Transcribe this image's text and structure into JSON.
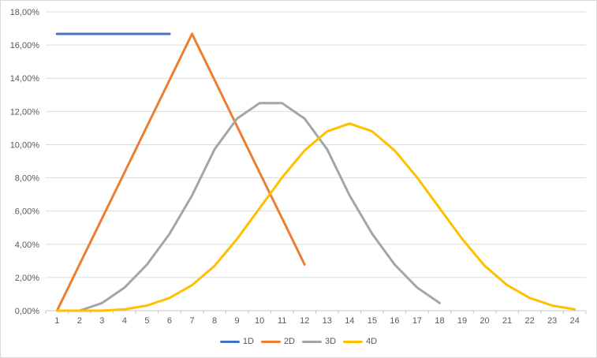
{
  "chart": {
    "background": "#FFFFFF",
    "border_color": "#D9D9D9",
    "grid_color": "#DCDCDC",
    "axis_color": "#C9C9C9",
    "label_color": "#595959",
    "y_axis": {
      "tick_labels": [
        "0,00%",
        "2,00%",
        "4,00%",
        "6,00%",
        "8,00%",
        "10,00%",
        "12,00%",
        "14,00%",
        "16,00%",
        "18,00%"
      ]
    },
    "x_axis": {
      "tick_labels": [
        "1",
        "2",
        "3",
        "4",
        "5",
        "6",
        "7",
        "8",
        "9",
        "10",
        "11",
        "12",
        "13",
        "14",
        "15",
        "16",
        "17",
        "18",
        "19",
        "20",
        "21",
        "22",
        "23",
        "24"
      ]
    },
    "legend": [
      {
        "label": "1D",
        "color": "#4472C4"
      },
      {
        "label": "2D",
        "color": "#ED7D31"
      },
      {
        "label": "3D",
        "color": "#A5A5A5"
      },
      {
        "label": "4D",
        "color": "#FFC000"
      }
    ]
  },
  "chart_data": {
    "type": "line",
    "title": "",
    "xlabel": "",
    "ylabel": "",
    "x_categories": [
      1,
      2,
      3,
      4,
      5,
      6,
      7,
      8,
      9,
      10,
      11,
      12,
      13,
      14,
      15,
      16,
      17,
      18,
      19,
      20,
      21,
      22,
      23,
      24
    ],
    "ylim": [
      0,
      18
    ],
    "y_step": 2,
    "y_unit": "percent",
    "y_format": "decimal-comma",
    "grid": "horizontal",
    "legend_position": "bottom",
    "series": [
      {
        "name": "1D",
        "color": "#4472C4",
        "points": [
          [
            1,
            16.67
          ],
          [
            2,
            16.67
          ],
          [
            3,
            16.67
          ],
          [
            4,
            16.67
          ],
          [
            5,
            16.67
          ],
          [
            6,
            16.67
          ]
        ]
      },
      {
        "name": "2D",
        "color": "#ED7D31",
        "points": [
          [
            1,
            0
          ],
          [
            2,
            2.78
          ],
          [
            3,
            5.56
          ],
          [
            4,
            8.33
          ],
          [
            5,
            11.11
          ],
          [
            6,
            13.89
          ],
          [
            7,
            16.67
          ],
          [
            8,
            13.89
          ],
          [
            9,
            11.11
          ],
          [
            10,
            8.33
          ],
          [
            11,
            5.56
          ],
          [
            12,
            2.78
          ]
        ]
      },
      {
        "name": "3D",
        "color": "#A5A5A5",
        "points": [
          [
            2,
            0
          ],
          [
            3,
            0.46
          ],
          [
            4,
            1.39
          ],
          [
            5,
            2.78
          ],
          [
            6,
            4.63
          ],
          [
            7,
            6.94
          ],
          [
            8,
            9.72
          ],
          [
            9,
            11.57
          ],
          [
            10,
            12.5
          ],
          [
            11,
            12.5
          ],
          [
            12,
            11.57
          ],
          [
            13,
            9.72
          ],
          [
            14,
            6.94
          ],
          [
            15,
            4.63
          ],
          [
            16,
            2.78
          ],
          [
            17,
            1.39
          ],
          [
            18,
            0.46
          ]
        ]
      },
      {
        "name": "4D",
        "color": "#FFC000",
        "points": [
          [
            1,
            0
          ],
          [
            2,
            0
          ],
          [
            3,
            0
          ],
          [
            4,
            0.08
          ],
          [
            5,
            0.31
          ],
          [
            6,
            0.77
          ],
          [
            7,
            1.54
          ],
          [
            8,
            2.7
          ],
          [
            9,
            4.32
          ],
          [
            10,
            6.17
          ],
          [
            11,
            8.02
          ],
          [
            12,
            9.65
          ],
          [
            13,
            10.8
          ],
          [
            14,
            11.27
          ],
          [
            15,
            10.8
          ],
          [
            16,
            9.65
          ],
          [
            17,
            8.02
          ],
          [
            18,
            6.17
          ],
          [
            19,
            4.32
          ],
          [
            20,
            2.7
          ],
          [
            21,
            1.54
          ],
          [
            22,
            0.77
          ],
          [
            23,
            0.31
          ],
          [
            24,
            0.08
          ]
        ]
      }
    ]
  }
}
